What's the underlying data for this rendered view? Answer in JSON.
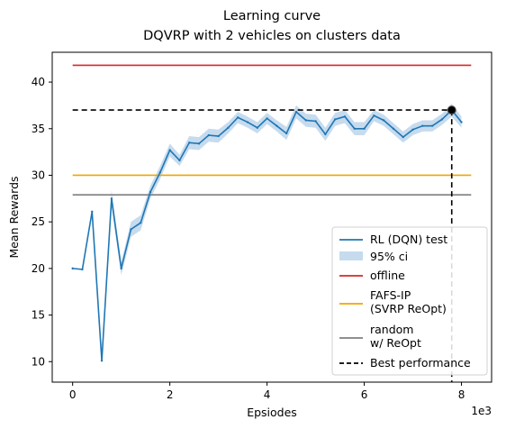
{
  "chart_data": {
    "type": "line",
    "title": "Learning curve",
    "subtitle": "DQVRP with 2 vehicles on clusters data",
    "xlabel": "Epsiodes",
    "ylabel": "Mean Rewards",
    "x_offset_label": "1e3",
    "xlim": [
      -0.42,
      8.62
    ],
    "ylim": [
      7.8,
      43.2
    ],
    "x_ticks": [
      0,
      2,
      4,
      6,
      8
    ],
    "x_tick_labels": [
      "0",
      "2",
      "4",
      "6",
      "8"
    ],
    "y_ticks": [
      10,
      15,
      20,
      25,
      30,
      35,
      40
    ],
    "y_tick_labels": [
      "10",
      "15",
      "20",
      "25",
      "30",
      "35",
      "40"
    ],
    "grid": false,
    "legend_position": "lower-right",
    "series": [
      {
        "name": "RL (DQN) test",
        "color": "#1f77b4",
        "x": [
          0,
          0.2,
          0.4,
          0.6,
          0.8,
          1.0,
          1.2,
          1.4,
          1.6,
          1.8,
          2.0,
          2.2,
          2.4,
          2.6,
          2.8,
          3.0,
          3.2,
          3.4,
          3.6,
          3.8,
          4.0,
          4.2,
          4.4,
          4.6,
          4.8,
          5.0,
          5.2,
          5.4,
          5.6,
          5.8,
          6.0,
          6.2,
          6.4,
          6.6,
          6.8,
          7.0,
          7.2,
          7.4,
          7.6,
          7.8,
          8.0
        ],
        "y": [
          20.0,
          19.9,
          26.1,
          10.1,
          27.5,
          20.0,
          24.2,
          24.9,
          28.2,
          30.3,
          32.7,
          31.6,
          33.5,
          33.4,
          34.3,
          34.2,
          35.1,
          36.2,
          35.7,
          35.1,
          36.1,
          35.3,
          34.5,
          36.8,
          35.9,
          35.8,
          34.4,
          36.0,
          36.3,
          35.0,
          35.0,
          36.4,
          35.9,
          35.0,
          34.1,
          34.9,
          35.3,
          35.3,
          36.0,
          37.0,
          35.7
        ]
      },
      {
        "name": "95% ci",
        "color": "#c6dbee",
        "lower": [
          20.0,
          19.9,
          26.1,
          10.1,
          26.6,
          19.3,
          23.4,
          24.1,
          27.5,
          29.6,
          32.0,
          31.0,
          32.8,
          32.7,
          33.6,
          33.5,
          34.5,
          35.6,
          35.1,
          34.5,
          35.5,
          34.7,
          33.8,
          36.1,
          35.2,
          35.1,
          33.7,
          35.3,
          35.6,
          34.3,
          34.3,
          35.8,
          35.3,
          34.4,
          33.5,
          34.3,
          34.7,
          34.7,
          35.4,
          36.3,
          35.1
        ],
        "upper": [
          20.0,
          19.9,
          26.1,
          10.1,
          28.4,
          20.7,
          25.0,
          25.7,
          28.9,
          31.0,
          33.4,
          32.2,
          34.2,
          34.1,
          35.0,
          34.9,
          35.7,
          36.8,
          36.3,
          35.7,
          36.7,
          35.9,
          35.2,
          37.5,
          36.6,
          36.5,
          35.1,
          36.7,
          37.0,
          35.7,
          35.7,
          37.0,
          36.5,
          35.6,
          34.7,
          35.5,
          35.9,
          35.9,
          36.6,
          37.7,
          36.3
        ]
      },
      {
        "name": "offline",
        "color": "#d62728",
        "x": [
          0,
          8.2
        ],
        "y": [
          41.8,
          41.8
        ]
      },
      {
        "name": "FAFS-IP\n(SVRP ReOpt)",
        "color": "#f0a500",
        "x": [
          0,
          8.2
        ],
        "y": [
          30.0,
          30.0
        ]
      },
      {
        "name": "random\nw/ ReOpt",
        "color": "#7f7f7f",
        "x": [
          0,
          8.2
        ],
        "y": [
          27.9,
          27.9
        ]
      },
      {
        "name": "Best performance",
        "color": "#000000",
        "best_x": 7.8,
        "best_y": 37.0
      }
    ]
  }
}
